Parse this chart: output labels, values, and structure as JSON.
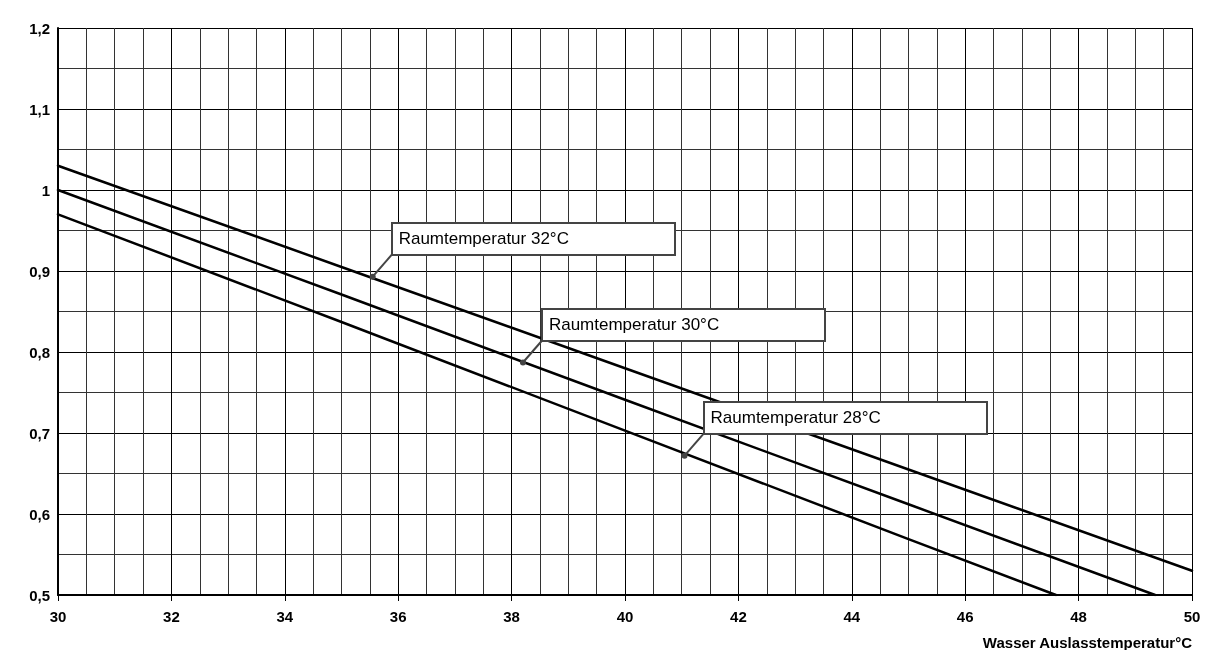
{
  "chart_data": {
    "type": "line",
    "xlabel": "Wasser Auslasstemperatur°C",
    "series": [
      {
        "color": "#000000",
        "x": [
          30,
          35,
          40,
          45,
          50
        ],
        "values": [
          1.03,
          0.905,
          0.78,
          0.655,
          0.53
        ]
      },
      {
        "color": "#000000",
        "x": [
          30,
          35,
          40,
          45,
          49.35
        ],
        "values": [
          1.0,
          0.871,
          0.741,
          0.612,
          0.5
        ]
      },
      {
        "color": "#000000",
        "x": [
          30,
          35,
          40,
          45,
          47.6
        ],
        "values": [
          0.97,
          0.837,
          0.703,
          0.569,
          0.5
        ]
      }
    ],
    "annotations": [
      {
        "text": "Raumtemperatur 32°C",
        "x": 35.55,
        "y": 0.893
      },
      {
        "text": "Raumtemperatur 30°C",
        "x": 38.2,
        "y": 0.787
      },
      {
        "text": "Raumtemperatur 28°C",
        "x": 41.05,
        "y": 0.672
      }
    ],
    "xlim": [
      30,
      50
    ],
    "xticks": [
      30,
      32,
      34,
      36,
      38,
      40,
      42,
      44,
      46,
      48,
      50
    ],
    "ylim": [
      0.5,
      1.2
    ],
    "yticks": [
      {
        "value": 0.5,
        "label": "0,5"
      },
      {
        "value": 0.6,
        "label": "0,6"
      },
      {
        "value": 0.7,
        "label": "0,7"
      },
      {
        "value": 0.8,
        "label": "0,8"
      },
      {
        "value": 0.9,
        "label": "0,9"
      },
      {
        "value": 1,
        "label": "1"
      },
      {
        "value": 1.1,
        "label": "1,1"
      },
      {
        "value": 1.2,
        "label": "1,2"
      }
    ],
    "grid": true,
    "marker": "none",
    "line_style": "solid"
  }
}
